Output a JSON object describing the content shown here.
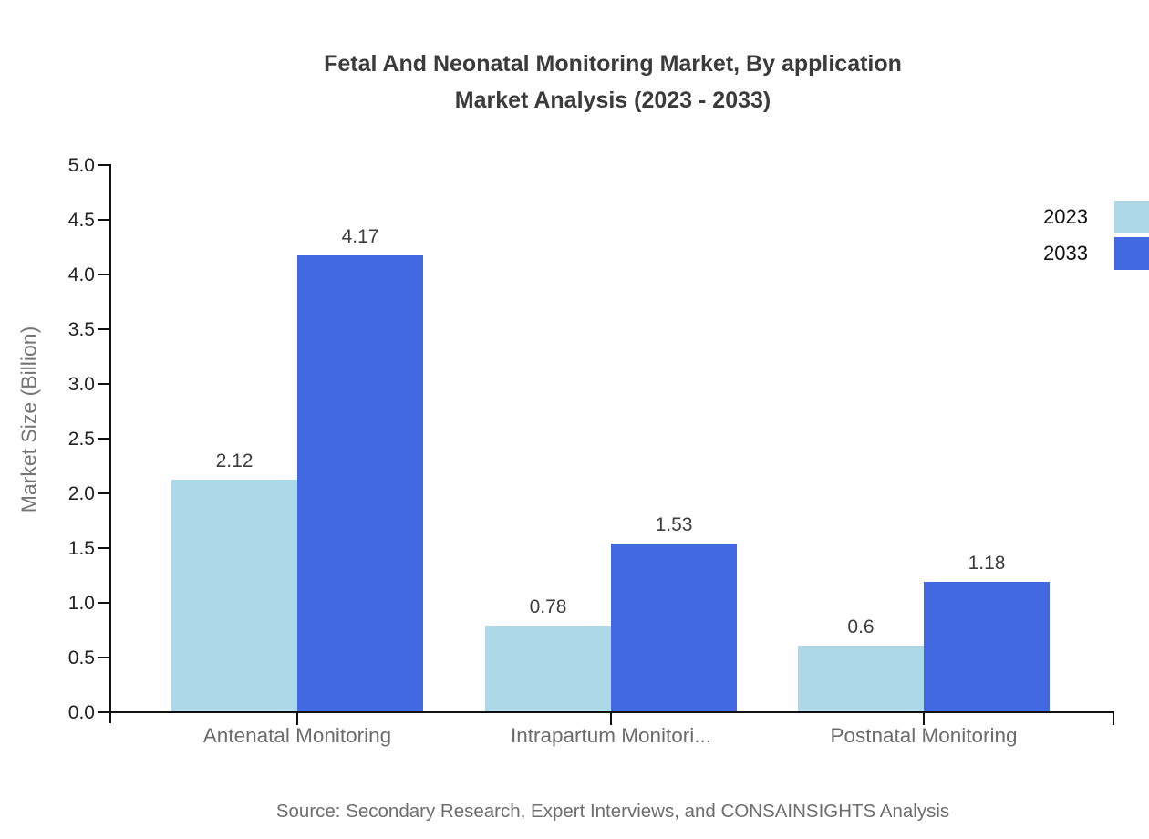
{
  "title": {
    "line1": "Fetal And Neonatal Monitoring Market, By application",
    "line2": "Market Analysis (2023 - 2033)"
  },
  "source": "Source: Secondary Research, Expert Interviews, and CONSAINSIGHTS Analysis",
  "chart_data": {
    "type": "bar",
    "title": "Fetal And Neonatal Monitoring Market, By application Market Analysis (2023 - 2033)",
    "xlabel": "",
    "ylabel": "Market Size (Billion)",
    "ylim": [
      0,
      5
    ],
    "ytick_labels": [
      "0.0",
      "0.5",
      "1.0",
      "1.5",
      "2.0",
      "2.5",
      "3.0",
      "3.5",
      "4.0",
      "4.5",
      "5.0"
    ],
    "grid": false,
    "legend_position": "top-right",
    "categories": [
      "Antenatal Monitoring",
      "Intrapartum Monitori...",
      "Postnatal Monitoring"
    ],
    "series": [
      {
        "name": "2023",
        "color": "#ACD8E8",
        "values": [
          2.12,
          0.78,
          0.6
        ],
        "labels": [
          "2.12",
          "0.78",
          "0.6"
        ]
      },
      {
        "name": "2033",
        "color": "#4268E2",
        "values": [
          4.17,
          1.53,
          1.18
        ],
        "labels": [
          "4.17",
          "1.53",
          "1.18"
        ]
      }
    ]
  }
}
